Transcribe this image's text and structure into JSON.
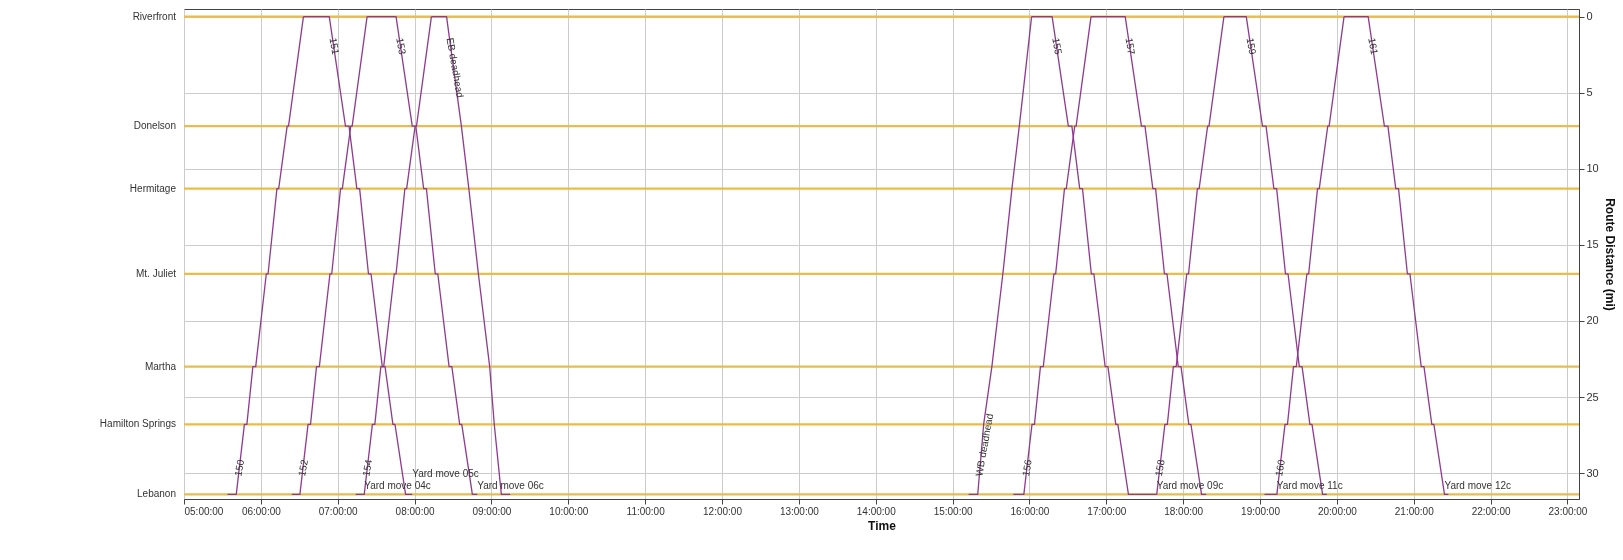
{
  "chart_data": {
    "type": "line",
    "xlabel": "Time",
    "ylabel": "Route Distance (mi)",
    "xlim": [
      5,
      23.15
    ],
    "xticks": [
      {
        "value": 5,
        "label": "05:00:00"
      },
      {
        "value": 6,
        "label": "06:00:00"
      },
      {
        "value": 7,
        "label": "07:00:00"
      },
      {
        "value": 8,
        "label": "08:00:00"
      },
      {
        "value": 9,
        "label": "09:00:00"
      },
      {
        "value": 10,
        "label": "10:00:00"
      },
      {
        "value": 11,
        "label": "11:00:00"
      },
      {
        "value": 12,
        "label": "12:00:00"
      },
      {
        "value": 13,
        "label": "13:00:00"
      },
      {
        "value": 14,
        "label": "14:00:00"
      },
      {
        "value": 15,
        "label": "15:00:00"
      },
      {
        "value": 16,
        "label": "16:00:00"
      },
      {
        "value": 17,
        "label": "17:00:00"
      },
      {
        "value": 18,
        "label": "18:00:00"
      },
      {
        "value": 19,
        "label": "19:00:00"
      },
      {
        "value": 20,
        "label": "20:00:00"
      },
      {
        "value": 21,
        "label": "21:00:00"
      },
      {
        "value": 22,
        "label": "22:00:00"
      },
      {
        "value": 23,
        "label": "23:00:00"
      }
    ],
    "ylim": [
      31.7,
      -0.5
    ],
    "yticks": [
      0,
      5,
      10,
      15,
      20,
      25,
      30
    ],
    "grid": true,
    "ref_lines": [
      {
        "axis": "y",
        "value": 0,
        "label": "Riverfront",
        "color": "#e9bc4c"
      },
      {
        "axis": "y",
        "value": 7.2,
        "label": "Donelson",
        "color": "#e9bc4c"
      },
      {
        "axis": "y",
        "value": 11.3,
        "label": "Hermitage",
        "color": "#e9bc4c"
      },
      {
        "axis": "y",
        "value": 16.9,
        "label": "Mt. Juliet",
        "color": "#e9bc4c"
      },
      {
        "axis": "y",
        "value": 23,
        "label": "Martha",
        "color": "#e9bc4c"
      },
      {
        "axis": "y",
        "value": 26.8,
        "label": "Hamilton Springs",
        "color": "#e9bc4c"
      },
      {
        "axis": "y",
        "value": 31.4,
        "label": "Lebanon",
        "color": "#e9bc4c"
      }
    ],
    "series": [
      {
        "name": "150",
        "color": "#8e3b8e",
        "x": [
          5.566,
          5.68,
          5.786,
          5.818,
          5.896,
          5.933,
          6.071,
          6.094,
          6.209,
          6.232,
          6.342,
          6.36,
          6.554
        ],
        "values": [
          31.4,
          31.4,
          26.8,
          26.8,
          23,
          23,
          16.9,
          16.9,
          11.3,
          11.3,
          7.2,
          7.2,
          0
        ]
      },
      {
        "name": "151",
        "color": "#8e3b8e",
        "x": [
          6.554,
          6.89,
          7.101,
          7.147,
          7.249,
          7.285,
          7.4,
          7.433,
          7.58,
          7.616,
          7.718,
          7.745,
          7.883,
          7.97
        ],
        "values": [
          0,
          0,
          7.2,
          7.2,
          11.3,
          11.3,
          16.9,
          16.9,
          23,
          23,
          26.8,
          26.8,
          31.4,
          31.4
        ]
      },
      {
        "name": "152",
        "color": "#8e3b8e",
        "x": [
          6.402,
          6.508,
          6.614,
          6.646,
          6.724,
          6.761,
          6.899,
          6.922,
          7.037,
          7.06,
          7.17,
          7.188,
          7.382
        ],
        "values": [
          31.4,
          31.4,
          26.8,
          26.8,
          23,
          23,
          16.9,
          16.9,
          11.3,
          11.3,
          7.2,
          7.2,
          0
        ]
      },
      {
        "name": "153",
        "color": "#8e3b8e",
        "x": [
          7.382,
          7.759,
          7.97,
          8.016,
          8.118,
          8.154,
          8.269,
          8.302,
          8.449,
          8.485,
          8.587,
          8.614,
          8.752,
          8.816
        ],
        "values": [
          0,
          0,
          7.2,
          7.2,
          11.3,
          11.3,
          16.9,
          16.9,
          23,
          23,
          26.8,
          26.8,
          31.4,
          31.4
        ]
      },
      {
        "name": "154",
        "color": "#8e3b8e",
        "x": [
          7.234,
          7.345,
          7.451,
          7.483,
          7.561,
          7.598,
          7.736,
          7.759,
          7.874,
          7.897,
          8.007,
          8.025,
          8.219
        ],
        "values": [
          31.4,
          31.4,
          26.8,
          26.8,
          23,
          23,
          16.9,
          16.9,
          11.3,
          11.3,
          7.2,
          7.2,
          0
        ]
      },
      {
        "name": "EB deadhead",
        "color": "#8e3b8e",
        "x": [
          8.219,
          8.416,
          8.609,
          8.706,
          8.83,
          8.977,
          9.037,
          9.129,
          9.244
        ],
        "values": [
          0,
          0,
          7.2,
          11.3,
          16.9,
          23,
          26.8,
          31.4,
          31.4
        ]
      },
      {
        "name": "WB deadhead",
        "color": "#8e3b8e",
        "x": [
          15.208,
          15.327,
          15.404,
          15.511,
          15.654,
          15.772,
          15.868,
          16.028
        ],
        "values": [
          31.4,
          31.4,
          26.8,
          23,
          16.9,
          11.3,
          7.2,
          0
        ]
      },
      {
        "name": "155",
        "color": "#8e3b8e",
        "x": [
          16.028,
          16.295,
          16.506,
          16.552,
          16.654,
          16.69,
          16.805,
          16.838,
          16.985,
          17.021,
          17.123,
          17.15,
          17.288,
          17.656
        ],
        "values": [
          0,
          0,
          7.2,
          7.2,
          11.3,
          11.3,
          16.9,
          16.9,
          23,
          23,
          26.8,
          26.8,
          31.4,
          31.4
        ]
      },
      {
        "name": "156",
        "color": "#8e3b8e",
        "x": [
          15.79,
          15.927,
          16.033,
          16.065,
          16.143,
          16.18,
          16.318,
          16.341,
          16.456,
          16.479,
          16.589,
          16.607,
          16.801
        ],
        "values": [
          31.4,
          31.4,
          26.8,
          26.8,
          23,
          23,
          16.9,
          16.9,
          11.3,
          11.3,
          7.2,
          7.2,
          0
        ]
      },
      {
        "name": "157",
        "color": "#8e3b8e",
        "x": [
          16.801,
          17.246,
          17.457,
          17.503,
          17.605,
          17.641,
          17.756,
          17.789,
          17.936,
          17.972,
          18.074,
          18.101,
          18.239,
          18.3
        ],
        "values": [
          0,
          0,
          7.2,
          7.2,
          11.3,
          11.3,
          16.9,
          16.9,
          23,
          23,
          26.8,
          26.8,
          31.4,
          31.4
        ]
      },
      {
        "name": "158",
        "color": "#8e3b8e",
        "x": [
          17.656,
          17.762,
          17.794,
          17.872,
          17.909,
          18.047,
          18.07,
          18.185,
          18.208,
          18.318,
          18.336,
          18.53
        ],
        "values": [
          31.4,
          26.8,
          26.8,
          23,
          23,
          16.9,
          16.9,
          11.3,
          11.3,
          7.2,
          7.2,
          0
        ]
      },
      {
        "name": "159",
        "color": "#8e3b8e",
        "x": [
          18.53,
          18.821,
          19.032,
          19.078,
          19.18,
          19.216,
          19.331,
          19.364,
          19.511,
          19.547,
          19.649,
          19.676,
          19.814,
          19.87
        ],
        "values": [
          0,
          0,
          7.2,
          7.2,
          11.3,
          11.3,
          16.9,
          16.9,
          23,
          23,
          26.8,
          26.8,
          31.4,
          31.4
        ]
      },
      {
        "name": "160",
        "color": "#8e3b8e",
        "x": [
          19.058,
          19.219,
          19.325,
          19.357,
          19.435,
          19.472,
          19.61,
          19.633,
          19.748,
          19.771,
          19.881,
          19.899,
          20.093
        ],
        "values": [
          31.4,
          31.4,
          26.8,
          26.8,
          23,
          23,
          16.9,
          16.9,
          11.3,
          11.3,
          7.2,
          7.2,
          0
        ]
      },
      {
        "name": "161",
        "color": "#8e3b8e",
        "x": [
          20.093,
          20.407,
          20.618,
          20.664,
          20.766,
          20.802,
          20.917,
          20.95,
          21.097,
          21.133,
          21.235,
          21.262,
          21.4,
          21.45
        ],
        "values": [
          0,
          0,
          7.2,
          7.2,
          11.3,
          11.3,
          16.9,
          16.9,
          23,
          23,
          26.8,
          26.8,
          31.4,
          31.4
        ]
      }
    ],
    "annotations": [
      {
        "text": "Yard move 04c",
        "x": 7.345,
        "y": 31.4
      },
      {
        "text": "Yard move 05c",
        "x": 7.97,
        "y": 31.4
      },
      {
        "text": "Yard move 06c",
        "x": 8.816,
        "y": 31.4
      },
      {
        "text": "Yard move 09c",
        "x": 17.656,
        "y": 31.4
      },
      {
        "text": "Yard move 11c",
        "x": 19.219,
        "y": 31.4
      },
      {
        "text": "Yard move 12c",
        "x": 21.4,
        "y": 31.4
      }
    ]
  }
}
